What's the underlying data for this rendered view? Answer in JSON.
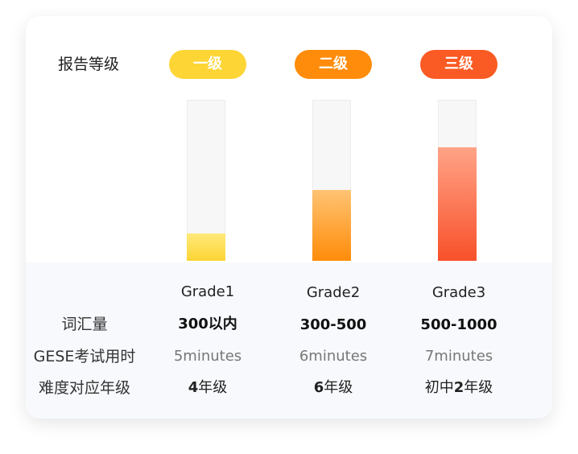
{
  "header": {
    "label": "报告等级"
  },
  "grades": [
    {
      "badge": "一级",
      "badge_color": "#FDD535",
      "fill_fraction": 0.17,
      "fill_top": "#FFE97A",
      "fill_bottom": "#FDD535",
      "name": "Grade1",
      "vocab": "300以内",
      "time": "5minutes",
      "difficulty_num": "4",
      "difficulty_prefix": "",
      "difficulty_suffix": "年级"
    },
    {
      "badge": "二级",
      "badge_color": "#FF8C0A",
      "fill_fraction": 0.44,
      "fill_top": "#FFC373",
      "fill_bottom": "#FF8C0A",
      "name": "Grade2",
      "vocab": "300-500",
      "time": "6minutes",
      "difficulty_num": "6",
      "difficulty_prefix": "",
      "difficulty_suffix": "年级"
    },
    {
      "badge": "三级",
      "badge_color": "#FA5A23",
      "fill_fraction": 0.71,
      "fill_top": "#FFA387",
      "fill_bottom": "#F8512A",
      "name": "Grade3",
      "vocab": "500-1000",
      "time": "7minutes",
      "difficulty_num": "2",
      "difficulty_prefix": "初中",
      "difficulty_suffix": "年级"
    }
  ],
  "rows": {
    "vocab_label": "词汇量",
    "time_label": "GESE考试用时",
    "difficulty_label": "难度对应年级"
  }
}
